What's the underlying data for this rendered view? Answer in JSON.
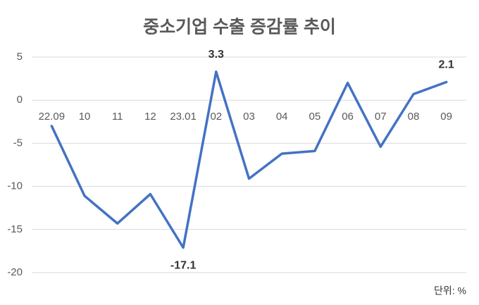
{
  "chart_data": {
    "type": "line",
    "title": "중소기업 수출 증감률 추이",
    "categories": [
      "22.09",
      "10",
      "11",
      "12",
      "23.01",
      "02",
      "03",
      "04",
      "05",
      "06",
      "07",
      "08",
      "09"
    ],
    "series": [
      {
        "name": "중소기업 수출 증감률",
        "color": "#4472c4",
        "values": [
          -3.0,
          -11.1,
          -14.3,
          -10.9,
          -17.1,
          3.3,
          -9.1,
          -6.2,
          -5.9,
          2.0,
          -5.4,
          0.7,
          2.1
        ],
        "value_labels": [
          null,
          null,
          null,
          null,
          "-17.1",
          "3.3",
          null,
          null,
          null,
          null,
          null,
          null,
          "2.1"
        ]
      }
    ],
    "ylim": [
      -20,
      5
    ],
    "yticks": [
      -20,
      -15,
      -10,
      -5,
      0,
      5
    ],
    "grid": true,
    "unit_label": "단위: %"
  }
}
